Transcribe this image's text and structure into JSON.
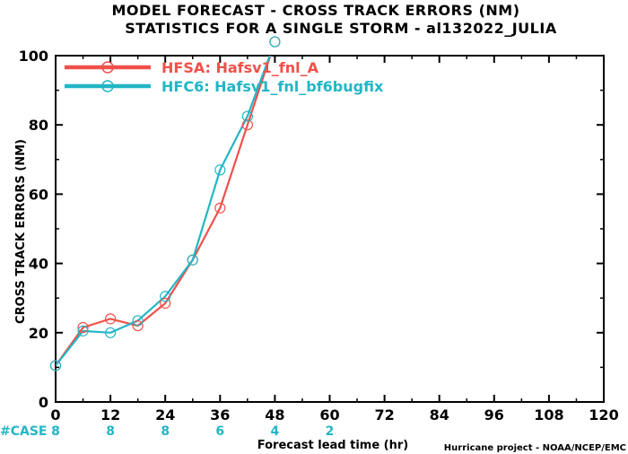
{
  "chart_data": {
    "type": "line",
    "title": "MODEL FORECAST - CROSS TRACK ERRORS (NM)",
    "subtitle": "STATISTICS FOR A SINGLE STORM - al132022_JULIA",
    "xlabel": "Forecast lead time (hr)",
    "ylabel": "CROSS TRACK ERRORS (NM)",
    "xlim": [
      0,
      120
    ],
    "ylim": [
      0,
      100
    ],
    "xticks": [
      "0",
      "12",
      "24",
      "36",
      "48",
      "60",
      "72",
      "84",
      "96",
      "108",
      "120"
    ],
    "yticks": [
      "0",
      "20",
      "40",
      "60",
      "80",
      "100"
    ],
    "grid": false,
    "legend_position": "top-left",
    "series": [
      {
        "name": "HFSA: Hafsv1_fnl_A",
        "color": "#f0504a",
        "x": [
          0,
          6,
          12,
          18,
          24,
          30,
          36,
          42,
          48
        ],
        "y": [
          10.5,
          21.5,
          24,
          22,
          28.5,
          41,
          56,
          80,
          104
        ]
      },
      {
        "name": "HFC6: Hafsv1_fnl_bf6bugfix",
        "color": "#22b6c6",
        "x": [
          0,
          6,
          12,
          18,
          24,
          30,
          36,
          42,
          48
        ],
        "y": [
          10.5,
          20.5,
          20,
          23.5,
          30.5,
          41,
          67,
          82.5,
          104
        ]
      }
    ],
    "case_label": "#CASE",
    "case_counts": [
      {
        "x": 0,
        "label": "8"
      },
      {
        "x": 12,
        "label": "8"
      },
      {
        "x": 24,
        "label": "8"
      },
      {
        "x": 36,
        "label": "6"
      },
      {
        "x": 48,
        "label": "4"
      },
      {
        "x": 60,
        "label": "2"
      }
    ],
    "credit": "Hurricane project - NOAA/NCEP/EMC"
  }
}
